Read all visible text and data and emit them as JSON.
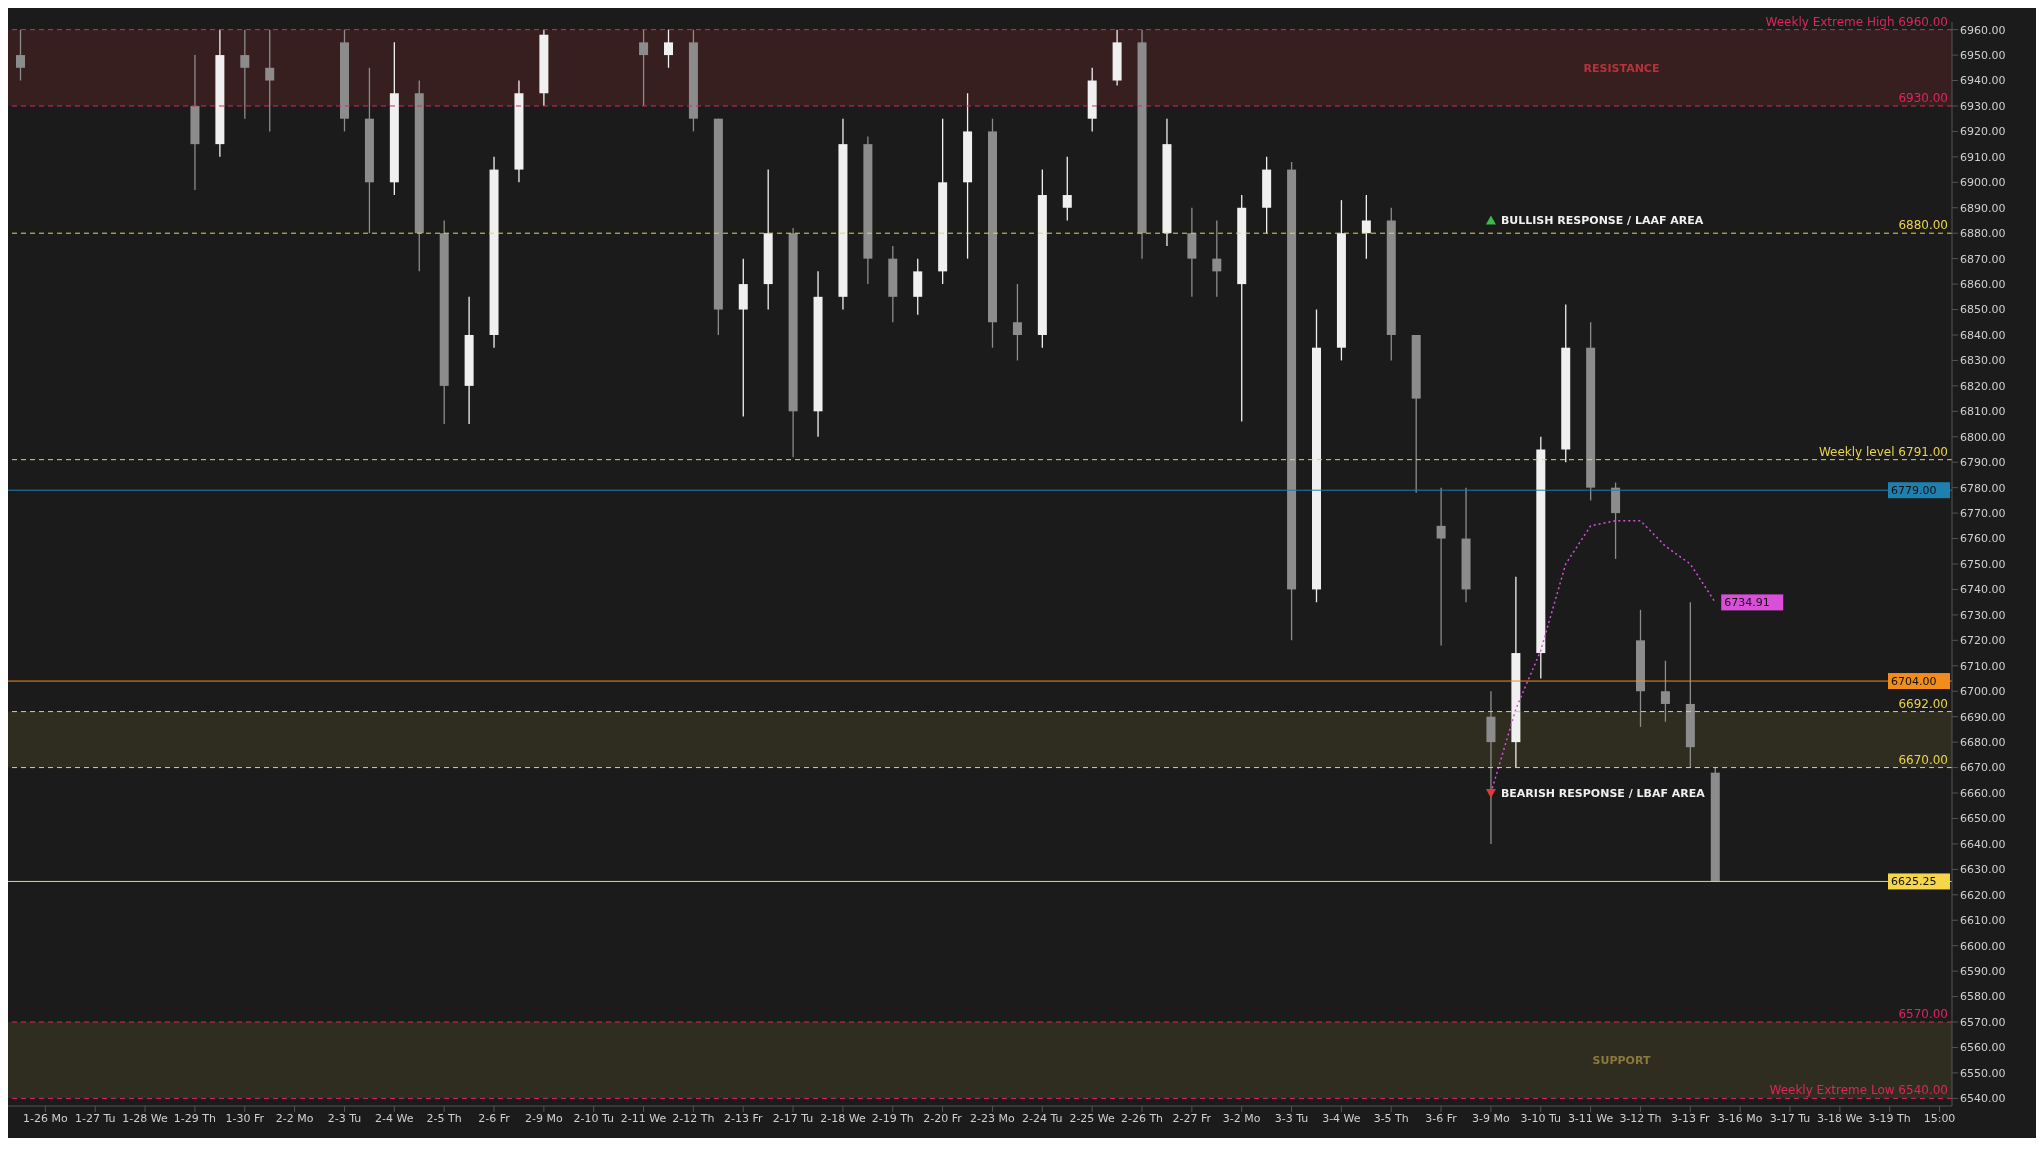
{
  "chart_data": {
    "type": "candlestick",
    "categories": [
      null,
      "1-26 Mo",
      null,
      "1-27 Tu",
      null,
      "1-28 We",
      null,
      "1-29 Th",
      null,
      "1-30 Fr",
      null,
      "2-2 Mo",
      null,
      "2-3 Tu",
      null,
      "2-4 We",
      null,
      "2-5 Th",
      null,
      "2-6 Fr",
      null,
      "2-9 Mo",
      null,
      "2-10 Tu",
      null,
      "2-11 We",
      null,
      "2-12 Th",
      null,
      "2-13 Fr",
      null,
      "2-17 Tu",
      null,
      "2-18 We",
      null,
      "2-19 Th",
      null,
      "2-20 Fr",
      null,
      "2-23 Mo",
      null,
      "2-24 Tu",
      null,
      "2-25 We",
      null,
      "2-26 Th",
      null,
      "2-27 Fr",
      null,
      "3-2 Mo",
      null,
      "3-3 Tu",
      null,
      "3-4 We",
      null,
      "3-5 Th",
      null,
      "3-6 Fr",
      null,
      "3-9 Mo",
      null,
      "3-10 Tu",
      null,
      "3-11 We",
      null,
      "3-12 Th",
      null,
      "3-13 Fr",
      null,
      "3-16 Mo",
      null,
      "3-17 Tu",
      null,
      "3-18 We",
      null,
      "3-19 Th",
      null,
      "15:00"
    ],
    "ohlc": [
      [
        6950,
        6960,
        6940,
        6945
      ],
      null,
      null,
      null,
      null,
      null,
      null,
      [
        6930,
        6950,
        6897,
        6915
      ],
      [
        6915,
        6960,
        6910,
        6950
      ],
      [
        6950,
        6960,
        6925,
        6945
      ],
      [
        6945,
        6960,
        6920,
        6940
      ],
      null,
      null,
      [
        6955,
        6960,
        6920,
        6925
      ],
      [
        6925,
        6945,
        6880,
        6900
      ],
      [
        6900,
        6955,
        6895,
        6935
      ],
      [
        6935,
        6940,
        6865,
        6880
      ],
      [
        6880,
        6885,
        6805,
        6820
      ],
      [
        6820,
        6855,
        6805,
        6840
      ],
      [
        6840,
        6910,
        6835,
        6905
      ],
      [
        6905,
        6940,
        6900,
        6935
      ],
      [
        6935,
        6960,
        6930,
        6958
      ],
      null,
      null,
      null,
      [
        6955,
        6960,
        6930,
        6950
      ],
      [
        6950,
        6960,
        6945,
        6955
      ],
      [
        6955,
        6960,
        6920,
        6925
      ],
      [
        6925,
        6925,
        6840,
        6850
      ],
      [
        6850,
        6870,
        6808,
        6860
      ],
      [
        6860,
        6905,
        6850,
        6880
      ],
      [
        6880,
        6882,
        6792,
        6810
      ],
      [
        6810,
        6865,
        6800,
        6855
      ],
      [
        6855,
        6925,
        6850,
        6915
      ],
      [
        6915,
        6918,
        6860,
        6870
      ],
      [
        6870,
        6875,
        6845,
        6855
      ],
      [
        6855,
        6870,
        6848,
        6865
      ],
      [
        6865,
        6925,
        6860,
        6900
      ],
      [
        6900,
        6935,
        6870,
        6920
      ],
      [
        6920,
        6925,
        6835,
        6845
      ],
      [
        6845,
        6860,
        6830,
        6840
      ],
      [
        6840,
        6905,
        6835,
        6895
      ],
      [
        6890,
        6910,
        6885,
        6895
      ],
      [
        6925,
        6945,
        6920,
        6940
      ],
      [
        6940,
        6960,
        6938,
        6955
      ],
      [
        6955,
        6960,
        6870,
        6880
      ],
      [
        6880,
        6925,
        6875,
        6915
      ],
      [
        6880,
        6890,
        6855,
        6870
      ],
      [
        6870,
        6885,
        6855,
        6865
      ],
      [
        6860,
        6895,
        6806,
        6890
      ],
      [
        6890,
        6910,
        6880,
        6905
      ],
      [
        6905,
        6908,
        6720,
        6740
      ],
      [
        6740,
        6850,
        6735,
        6835
      ],
      [
        6835,
        6893,
        6830,
        6880
      ],
      [
        6880,
        6895,
        6870,
        6885
      ],
      [
        6885,
        6890,
        6830,
        6840
      ],
      [
        6840,
        6840,
        6778,
        6815
      ],
      [
        6765,
        6780,
        6718,
        6760
      ],
      [
        6760,
        6780,
        6735,
        6740
      ],
      [
        6690,
        6700,
        6640,
        6680
      ],
      [
        6680,
        6745,
        6670,
        6715
      ],
      [
        6715,
        6800,
        6705,
        6795
      ],
      [
        6795,
        6852,
        6790,
        6835
      ],
      [
        6835,
        6845,
        6775,
        6780
      ],
      [
        6780,
        6782,
        6752,
        6770
      ],
      [
        6720,
        6732,
        6686,
        6700
      ],
      [
        6700,
        6712,
        6688,
        6695
      ],
      [
        6695,
        6735,
        6670,
        6678
      ],
      [
        6668,
        6670,
        6625,
        6625.25
      ],
      null,
      null,
      null,
      null,
      null,
      null,
      null,
      null,
      null
    ],
    "colors": [
      "#8c8c8c",
      null,
      null,
      null,
      null,
      null,
      null,
      "#8c8c8c",
      "#f0f0f0",
      "#8c8c8c",
      "#8c8c8c",
      null,
      null,
      "#8c8c8c",
      "#8c8c8c",
      "#f0f0f0",
      "#8c8c8c",
      "#8c8c8c",
      "#f0f0f0",
      "#f0f0f0",
      "#f0f0f0",
      "#f0f0f0",
      null,
      null,
      null,
      "#8c8c8c",
      "#f0f0f0",
      "#8c8c8c",
      "#8c8c8c",
      "#f0f0f0",
      "#f0f0f0",
      "#8c8c8c",
      "#f0f0f0",
      "#f0f0f0",
      "#8c8c8c",
      "#8c8c8c",
      "#f0f0f0",
      "#f0f0f0",
      "#f0f0f0",
      "#8c8c8c",
      "#8c8c8c",
      "#f0f0f0",
      "#f0f0f0",
      "#f0f0f0",
      "#f0f0f0",
      "#8c8c8c",
      "#f0f0f0",
      "#8c8c8c",
      "#8c8c8c",
      "#f0f0f0",
      "#f0f0f0",
      "#8c8c8c",
      "#f0f0f0",
      "#f0f0f0",
      "#f0f0f0",
      "#8c8c8c",
      "#8c8c8c",
      "#8c8c8c",
      "#8c8c8c",
      "#8c8c8c",
      "#f0f0f0",
      "#f0f0f0",
      "#f0f0f0",
      "#8c8c8c",
      "#8c8c8c",
      "#8c8c8c",
      "#8c8c8c",
      "#8c8c8c",
      "#8c8c8c",
      null,
      null,
      null,
      null,
      null,
      null,
      null,
      null,
      null
    ],
    "series": [
      {
        "type": "line",
        "color": "#d94fd9",
        "line_style": "dotted",
        "values": [
          null,
          null,
          null,
          null,
          null,
          null,
          null,
          null,
          null,
          null,
          null,
          null,
          null,
          null,
          null,
          null,
          null,
          null,
          null,
          null,
          null,
          null,
          null,
          null,
          null,
          null,
          null,
          null,
          null,
          null,
          null,
          null,
          null,
          null,
          null,
          null,
          null,
          null,
          null,
          null,
          null,
          null,
          null,
          null,
          null,
          null,
          null,
          null,
          null,
          null,
          null,
          null,
          null,
          null,
          null,
          null,
          null,
          null,
          null,
          6660,
          6693,
          6716,
          6750,
          6765,
          6767,
          6767,
          6757,
          6750,
          6734.91,
          null,
          null,
          null,
          null,
          null,
          null,
          null,
          null,
          null
        ],
        "value_labels": [
          null,
          null,
          null,
          null,
          null,
          null,
          null,
          null,
          null,
          null,
          null,
          null,
          null,
          null,
          null,
          null,
          null,
          null,
          null,
          null,
          null,
          null,
          null,
          null,
          null,
          null,
          null,
          null,
          null,
          null,
          null,
          null,
          null,
          null,
          null,
          null,
          null,
          null,
          null,
          null,
          null,
          null,
          null,
          null,
          null,
          null,
          null,
          null,
          null,
          null,
          null,
          null,
          null,
          null,
          null,
          null,
          null,
          null,
          null,
          null,
          null,
          null,
          null,
          null,
          null,
          null,
          null,
          null,
          "6734.91",
          null,
          null,
          null,
          null,
          null,
          null,
          null,
          null,
          null
        ]
      }
    ],
    "ylim": [
      6537,
      6963
    ],
    "yticks": [
      {
        "value": 6540,
        "label": "6540.00"
      },
      {
        "value": 6550,
        "label": "6550.00"
      },
      {
        "value": 6560,
        "label": "6560.00"
      },
      {
        "value": 6570,
        "label": "6570.00"
      },
      {
        "value": 6580,
        "label": "6580.00"
      },
      {
        "value": 6590,
        "label": "6590.00"
      },
      {
        "value": 6600,
        "label": "6600.00"
      },
      {
        "value": 6610,
        "label": "6610.00"
      },
      {
        "value": 6620,
        "label": "6620.00"
      },
      {
        "value": 6630,
        "label": "6630.00"
      },
      {
        "value": 6640,
        "label": "6640.00"
      },
      {
        "value": 6650,
        "label": "6650.00"
      },
      {
        "value": 6660,
        "label": "6660.00"
      },
      {
        "value": 6670,
        "label": "6670.00"
      },
      {
        "value": 6680,
        "label": "6680.00"
      },
      {
        "value": 6690,
        "label": "6690.00"
      },
      {
        "value": 6700,
        "label": "6700.00"
      },
      {
        "value": 6710,
        "label": "6710.00"
      },
      {
        "value": 6720,
        "label": "6720.00"
      },
      {
        "value": 6730,
        "label": "6730.00"
      },
      {
        "value": 6740,
        "label": "6740.00"
      },
      {
        "value": 6750,
        "label": "6750.00"
      },
      {
        "value": 6760,
        "label": "6760.00"
      },
      {
        "value": 6770,
        "label": "6770.00"
      },
      {
        "value": 6780,
        "label": "6780.00"
      },
      {
        "value": 6790,
        "label": "6790.00"
      },
      {
        "value": 6800,
        "label": "6800.00"
      },
      {
        "value": 6810,
        "label": "6810.00"
      },
      {
        "value": 6820,
        "label": "6820.00"
      },
      {
        "value": 6830,
        "label": "6830.00"
      },
      {
        "value": 6840,
        "label": "6840.00"
      },
      {
        "value": 6850,
        "label": "6850.00"
      },
      {
        "value": 6860,
        "label": "6860.00"
      },
      {
        "value": 6870,
        "label": "6870.00"
      },
      {
        "value": 6880,
        "label": "6880.00"
      },
      {
        "value": 6890,
        "label": "6890.00"
      },
      {
        "value": 6900,
        "label": "6900.00"
      },
      {
        "value": 6910,
        "label": "6910.00"
      },
      {
        "value": 6920,
        "label": "6920.00"
      },
      {
        "value": 6930,
        "label": "6930.00"
      },
      {
        "value": 6940,
        "label": "6940.00"
      },
      {
        "value": 6950,
        "label": "6950.00"
      },
      {
        "value": 6960,
        "label": "6960.00"
      }
    ],
    "bands": [
      {
        "axis": "y",
        "from": 6930,
        "to": 6960,
        "label": "RESISTANCE",
        "color": "#b8323a"
      },
      {
        "axis": "y",
        "from": 6670,
        "to": 6692,
        "color": "#8a7a3a"
      },
      {
        "axis": "y",
        "from": 6540,
        "to": 6570,
        "label": "SUPPORT",
        "color": "#8a7a3a"
      }
    ],
    "ref_lines": [
      {
        "axis": "y",
        "value": 6960,
        "label": "Weekly Extreme High 6960.00",
        "color": "#e0245e",
        "line_style": "dashed"
      },
      {
        "axis": "y",
        "value": 6930,
        "label": "6930.00",
        "color": "#e0245e",
        "line_style": "dashed"
      },
      {
        "axis": "y",
        "value": 6880,
        "label": "6880.00",
        "color": "#e8d44d",
        "line_style": "dashed"
      },
      {
        "axis": "y",
        "value": 6791,
        "label": "Weekly level 6791.00",
        "color": "#e8d44d",
        "line_style": "dashed"
      },
      {
        "axis": "y",
        "value": 6692,
        "label": "6692.00",
        "color": "#e8d44d",
        "line_style": "dashed"
      },
      {
        "axis": "y",
        "value": 6670,
        "label": "6670.00",
        "color": "#e8d44d",
        "line_style": "dashed"
      },
      {
        "axis": "y",
        "value": 6570,
        "label": "6570.00",
        "color": "#e0245e",
        "line_style": "dashed"
      },
      {
        "axis": "y",
        "value": 6540,
        "label": "Weekly Extreme Low 6540.00",
        "color": "#e0245e",
        "line_style": "dashed"
      },
      {
        "axis": "y",
        "value": 6779,
        "label": "6779.00",
        "color": "#1f7fae",
        "line_style": "solid"
      },
      {
        "axis": "y",
        "value": 6704,
        "label": "6704.00",
        "color": "#f28c1a",
        "line_style": "solid"
      },
      {
        "axis": "y",
        "value": 6625.25,
        "label": "6625.25",
        "color": "#f5d64a",
        "line_style": "solid"
      }
    ],
    "annotations": [
      {
        "text": "BULLISH RESPONSE / LAAF AREA",
        "x": "3-9 Mo",
        "y": 6885
      },
      {
        "text": "BEARISH RESPONSE / LBAF AREA",
        "x": "3-9 Mo",
        "y": 6660
      }
    ]
  }
}
